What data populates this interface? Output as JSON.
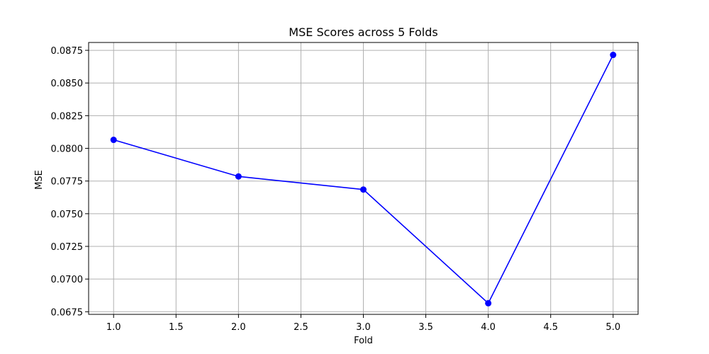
{
  "chart_data": {
    "type": "line",
    "title": "MSE Scores across 5 Folds",
    "xlabel": "Fold",
    "ylabel": "MSE",
    "xlim": [
      0.8,
      5.2
    ],
    "ylim": [
      0.0673,
      0.0881
    ],
    "xticks": [
      "1.0",
      "1.5",
      "2.0",
      "2.5",
      "3.0",
      "3.5",
      "4.0",
      "4.5",
      "5.0"
    ],
    "yticks": [
      "0.0675",
      "0.0700",
      "0.0725",
      "0.0750",
      "0.0775",
      "0.0800",
      "0.0825",
      "0.0850",
      "0.0875"
    ],
    "grid": true,
    "marker": "circle",
    "line_color": "#0000ff",
    "series": [
      {
        "x": [
          1,
          2,
          3,
          4,
          5
        ],
        "values": [
          0.08065,
          0.07785,
          0.07685,
          0.06815,
          0.08715
        ]
      }
    ]
  }
}
